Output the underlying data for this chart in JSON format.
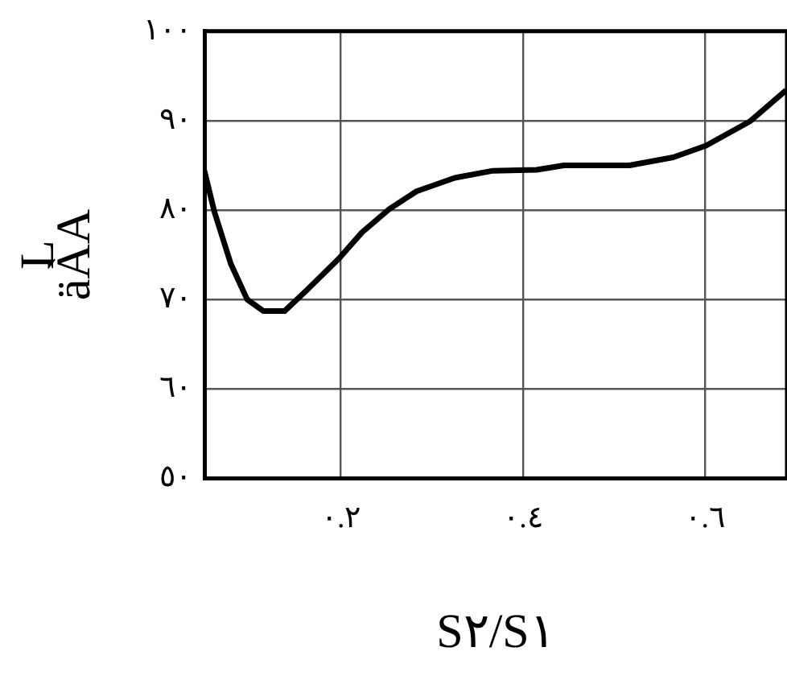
{
  "chart_data": {
    "type": "line",
    "xlabel": "S٢/S١",
    "ylabel": "L\näÀA",
    "x": [
      0.05,
      0.061,
      0.079,
      0.097,
      0.115,
      0.138,
      0.163,
      0.198,
      0.223,
      0.253,
      0.283,
      0.325,
      0.367,
      0.415,
      0.445,
      0.517,
      0.565,
      0.601,
      0.649,
      0.689
    ],
    "series": [
      {
        "color": "#000000",
        "values": [
          84.4,
          79.8,
          74.0,
          70.0,
          68.7,
          68.7,
          71.1,
          74.6,
          77.5,
          80.1,
          82.1,
          83.6,
          84.4,
          84.5,
          85.0,
          85.0,
          85.9,
          87.2,
          89.9,
          93.4
        ]
      }
    ],
    "xlim": [
      0.05,
      0.69
    ],
    "xticks": [
      {
        "value": 0.2,
        "label": "٠.٢"
      },
      {
        "value": 0.4,
        "label": "٠.٤"
      },
      {
        "value": 0.6,
        "label": "٠.٦"
      }
    ],
    "ylim": [
      50,
      100
    ],
    "yticks": [
      {
        "value": 50,
        "label": "٥٠"
      },
      {
        "value": 60,
        "label": "٦٠"
      },
      {
        "value": 70,
        "label": "٧٠"
      },
      {
        "value": 80,
        "label": "٨٠"
      },
      {
        "value": 90,
        "label": "٩٠"
      },
      {
        "value": 100,
        "label": "١٠٠"
      }
    ],
    "grid": true,
    "marker": "none",
    "line_style": "solid",
    "legend": false
  }
}
